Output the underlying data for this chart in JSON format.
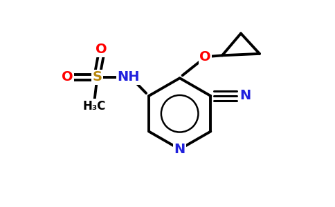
{
  "background_color": "#ffffff",
  "fig_width": 4.84,
  "fig_height": 3.0,
  "dpi": 100,
  "bond_color": "#000000",
  "bond_lw": 2.8,
  "atom_colors": {
    "N": "#2020dd",
    "O": "#ff0000",
    "S": "#b8860b",
    "C": "#000000",
    "H": "#000000"
  },
  "font_size_large": 14,
  "font_size_medium": 12,
  "font_size_small": 9
}
